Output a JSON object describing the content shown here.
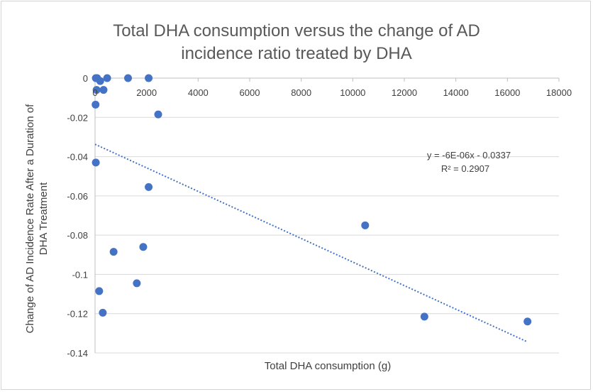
{
  "chart_data": {
    "type": "scatter",
    "title_lines": [
      "Total DHA consumption versus the change of AD",
      "incidence ratio treated by DHA"
    ],
    "xlabel": "Total DHA consumption (g)",
    "ylabel_lines": [
      "Change of AD Incidence Rate After a Duration of",
      "DHA Treatment"
    ],
    "xlim": [
      0,
      18000
    ],
    "ylim": [
      -0.14,
      0
    ],
    "x_ticks": [
      0,
      2000,
      4000,
      6000,
      8000,
      10000,
      12000,
      14000,
      16000,
      18000
    ],
    "x_tick_labels": [
      "0",
      "2000",
      "4000",
      "6000",
      "8000",
      "10000",
      "12000",
      "14000",
      "16000",
      "18000"
    ],
    "y_ticks": [
      0,
      -0.02,
      -0.04,
      -0.06,
      -0.08,
      -0.1,
      -0.12,
      -0.14
    ],
    "y_tick_labels": [
      "0",
      "-0.02",
      "-0.04",
      "-0.06",
      "-0.08",
      "-0.1",
      "-0.12",
      "-0.14"
    ],
    "grid": {
      "horizontal": true,
      "vertical": false
    },
    "marker_color": "#4472c4",
    "trendline_color": "#4472c4",
    "points": [
      {
        "x": 30,
        "y": 0
      },
      {
        "x": 80,
        "y": 0
      },
      {
        "x": 200,
        "y": -0.0015
      },
      {
        "x": 470,
        "y": 0
      },
      {
        "x": 1280,
        "y": 0
      },
      {
        "x": 2080,
        "y": 0
      },
      {
        "x": 60,
        "y": -0.006
      },
      {
        "x": 330,
        "y": -0.006
      },
      {
        "x": 20,
        "y": -0.0135
      },
      {
        "x": 2450,
        "y": -0.0185
      },
      {
        "x": 30,
        "y": -0.043
      },
      {
        "x": 2080,
        "y": -0.0555
      },
      {
        "x": 720,
        "y": -0.0885
      },
      {
        "x": 1870,
        "y": -0.086
      },
      {
        "x": 1620,
        "y": -0.1045
      },
      {
        "x": 160,
        "y": -0.1085
      },
      {
        "x": 300,
        "y": -0.1195
      },
      {
        "x": 10480,
        "y": -0.075
      },
      {
        "x": 12780,
        "y": -0.1215
      },
      {
        "x": 16780,
        "y": -0.124
      }
    ],
    "trendline": {
      "type": "linear",
      "slope": -6e-06,
      "intercept": -0.0337,
      "x_range": [
        0,
        16780
      ],
      "equation": "y = -6E-06x - 0.0337",
      "r_squared": "R² = 0.2907"
    }
  }
}
